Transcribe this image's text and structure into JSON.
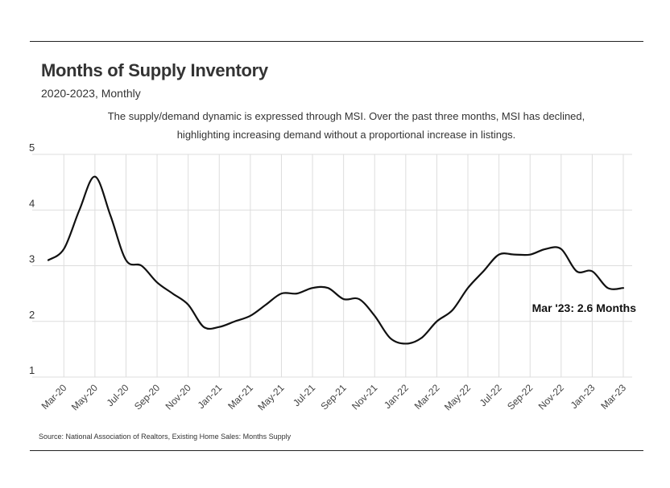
{
  "header": {
    "title": "Months of Supply Inventory",
    "subtitle": "2020-2023, Monthly",
    "description": "The supply/demand dynamic is expressed through MSI. Over the past three months, MSI has declined, highlighting increasing demand without a proportional increase in listings."
  },
  "footer": {
    "source": "Source:  National Association of Realtors, Existing Home Sales: Months Supply"
  },
  "colors": {
    "line": "#111111",
    "grid": "#dddddd",
    "rule": "#222222"
  },
  "chart_data": {
    "type": "line",
    "title": "Months of Supply Inventory",
    "subtitle": "2020-2023, Monthly",
    "xlabel": "",
    "ylabel": "",
    "ylim": [
      1,
      5
    ],
    "yticks": [
      1,
      2,
      3,
      4,
      5
    ],
    "grid": true,
    "x": [
      "Feb-20",
      "Mar-20",
      "Apr-20",
      "May-20",
      "Jun-20",
      "Jul-20",
      "Aug-20",
      "Sep-20",
      "Oct-20",
      "Nov-20",
      "Dec-20",
      "Jan-21",
      "Feb-21",
      "Mar-21",
      "Apr-21",
      "May-21",
      "Jun-21",
      "Jul-21",
      "Aug-21",
      "Sep-21",
      "Oct-21",
      "Nov-21",
      "Dec-21",
      "Jan-22",
      "Feb-22",
      "Mar-22",
      "Apr-22",
      "May-22",
      "Jun-22",
      "Jul-22",
      "Aug-22",
      "Sep-22",
      "Oct-22",
      "Nov-22",
      "Dec-22",
      "Jan-23",
      "Feb-23",
      "Mar-23"
    ],
    "tick_labels": [
      "Mar-20",
      "May-20",
      "Jul-20",
      "Sep-20",
      "Nov-20",
      "Jan-21",
      "Mar-21",
      "May-21",
      "Jul-21",
      "Sep-21",
      "Nov-21",
      "Jan-22",
      "Mar-22",
      "May-22",
      "Jul-22",
      "Sep-22",
      "Nov-22",
      "Jan-23",
      "Mar-23"
    ],
    "series": [
      {
        "name": "Months Supply",
        "values": [
          3.1,
          3.3,
          4.0,
          4.6,
          3.9,
          3.1,
          3.0,
          2.7,
          2.5,
          2.3,
          1.9,
          1.9,
          2.0,
          2.1,
          2.3,
          2.5,
          2.5,
          2.6,
          2.6,
          2.4,
          2.4,
          2.1,
          1.7,
          1.6,
          1.7,
          2.0,
          2.2,
          2.6,
          2.9,
          3.2,
          3.2,
          3.2,
          3.3,
          3.3,
          2.9,
          2.9,
          2.6,
          2.6
        ]
      }
    ],
    "annotations": [
      {
        "label": "Mar '23: 2.6 Months",
        "x": "Mar-23",
        "y": 2.6
      }
    ]
  }
}
